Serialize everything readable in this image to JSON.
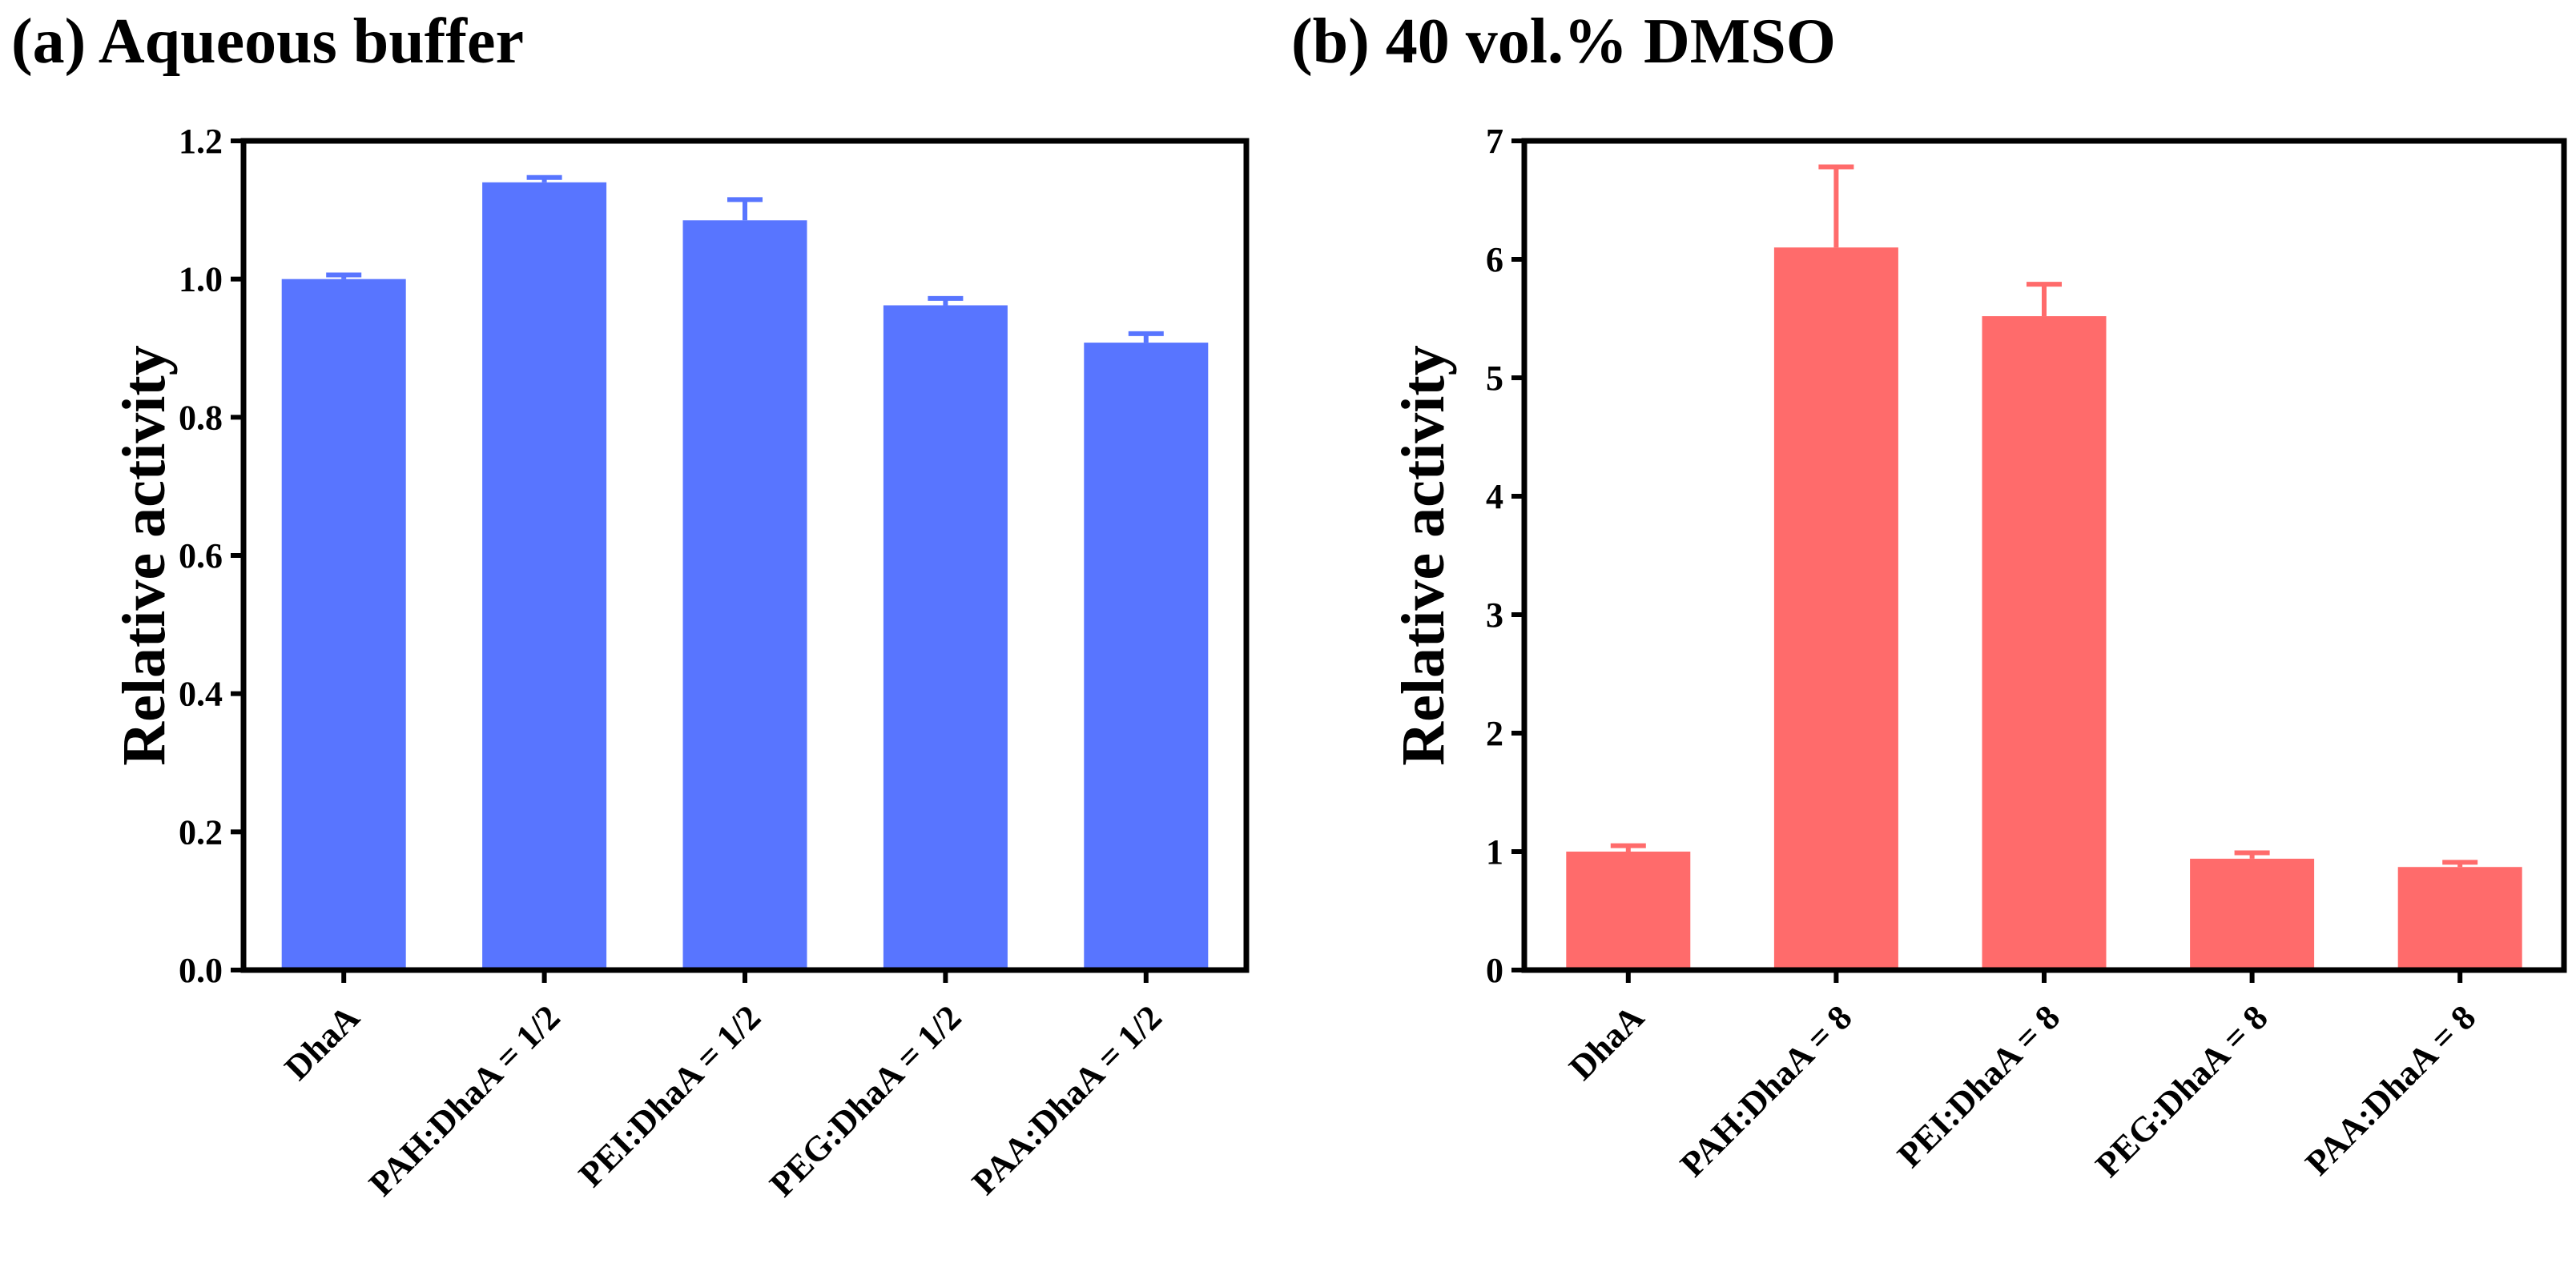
{
  "chart_data": [
    {
      "type": "bar",
      "title": "(a) Aqueous buffer",
      "xlabel": "",
      "ylabel": "Relative activity",
      "ylim": [
        0,
        1.2
      ],
      "yticks": [
        "0.0",
        "0.2",
        "0.4",
        "0.6",
        "0.8",
        "1.0",
        "1.2"
      ],
      "ytick_values": [
        0,
        0.2,
        0.4,
        0.6,
        0.8,
        1.0,
        1.2
      ],
      "categories": [
        "DhaA",
        "PAH:DhaA = 1/2",
        "PEI:DhaA = 1/2",
        "PEG:DhaA = 1/2",
        "PAA:DhaA = 1/2"
      ],
      "values": [
        1.0,
        1.14,
        1.085,
        0.962,
        0.908
      ],
      "errors": [
        0.006,
        0.007,
        0.03,
        0.01,
        0.013
      ],
      "color": "#5875ff"
    },
    {
      "type": "bar",
      "title": "(b) 40 vol.% DMSO",
      "xlabel": "",
      "ylabel": "Relative activity",
      "ylim": [
        0,
        7
      ],
      "yticks": [
        "0",
        "1",
        "2",
        "3",
        "4",
        "5",
        "6",
        "7"
      ],
      "ytick_values": [
        0,
        1,
        2,
        3,
        4,
        5,
        6,
        7
      ],
      "categories": [
        "DhaA",
        "PAH:DhaA = 8",
        "PEI:DhaA = 8",
        "PEG:DhaA = 8",
        "PAA:DhaA = 8"
      ],
      "values": [
        1.0,
        6.1,
        5.52,
        0.94,
        0.87
      ],
      "errors": [
        0.05,
        0.68,
        0.27,
        0.05,
        0.04
      ],
      "color": "#ff6b6b"
    }
  ]
}
